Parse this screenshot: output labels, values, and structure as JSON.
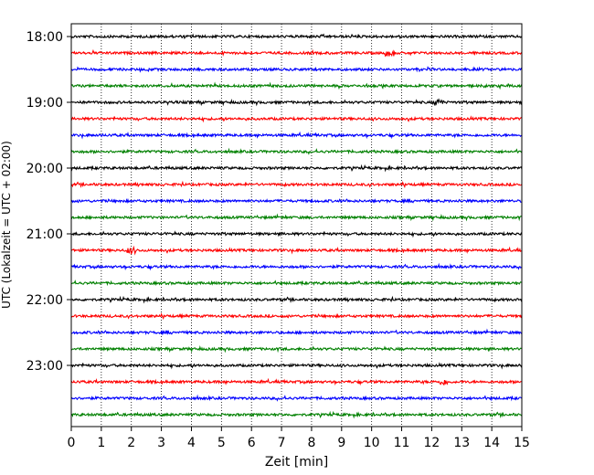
{
  "chart_data": {
    "type": "line",
    "title": "",
    "xlabel": "Zeit  [min]",
    "ylabel": "UTC (Lokalzeit = UTC + 02:00)",
    "xlim": [
      0,
      15
    ],
    "x_ticks": [
      0,
      1,
      2,
      3,
      4,
      5,
      6,
      7,
      8,
      9,
      10,
      11,
      12,
      13,
      14,
      15
    ],
    "x_tick_labels": [
      "0",
      "1",
      "2",
      "3",
      "4",
      "5",
      "6",
      "7",
      "8",
      "9",
      "10",
      "11",
      "12",
      "13",
      "14",
      "15"
    ],
    "y_tick_labels": [
      "18:00",
      "19:00",
      "20:00",
      "21:00",
      "22:00",
      "23:00"
    ],
    "vertical_grid": true,
    "grid_style": "dotted",
    "traces_per_hour": 4,
    "trace_minutes": 15,
    "row_start_times": [
      "18:00",
      "18:15",
      "18:30",
      "18:45",
      "19:00",
      "19:15",
      "19:30",
      "19:45",
      "20:00",
      "20:15",
      "20:30",
      "20:45",
      "21:00",
      "21:15",
      "21:30",
      "21:45",
      "22:00",
      "22:15",
      "22:30",
      "22:45",
      "23:00",
      "23:15",
      "23:30",
      "23:45"
    ],
    "trace_color_cycle": [
      "#000000",
      "#ff0000",
      "#0000ff",
      "#008000"
    ],
    "events": [
      {
        "row_start": "18:15",
        "minute": 10.6
      },
      {
        "row_start": "19:00",
        "minute": 12.25
      },
      {
        "row_start": "21:15",
        "minute": 2.0
      },
      {
        "row_start": "23:15",
        "minute": 12.4
      }
    ]
  }
}
